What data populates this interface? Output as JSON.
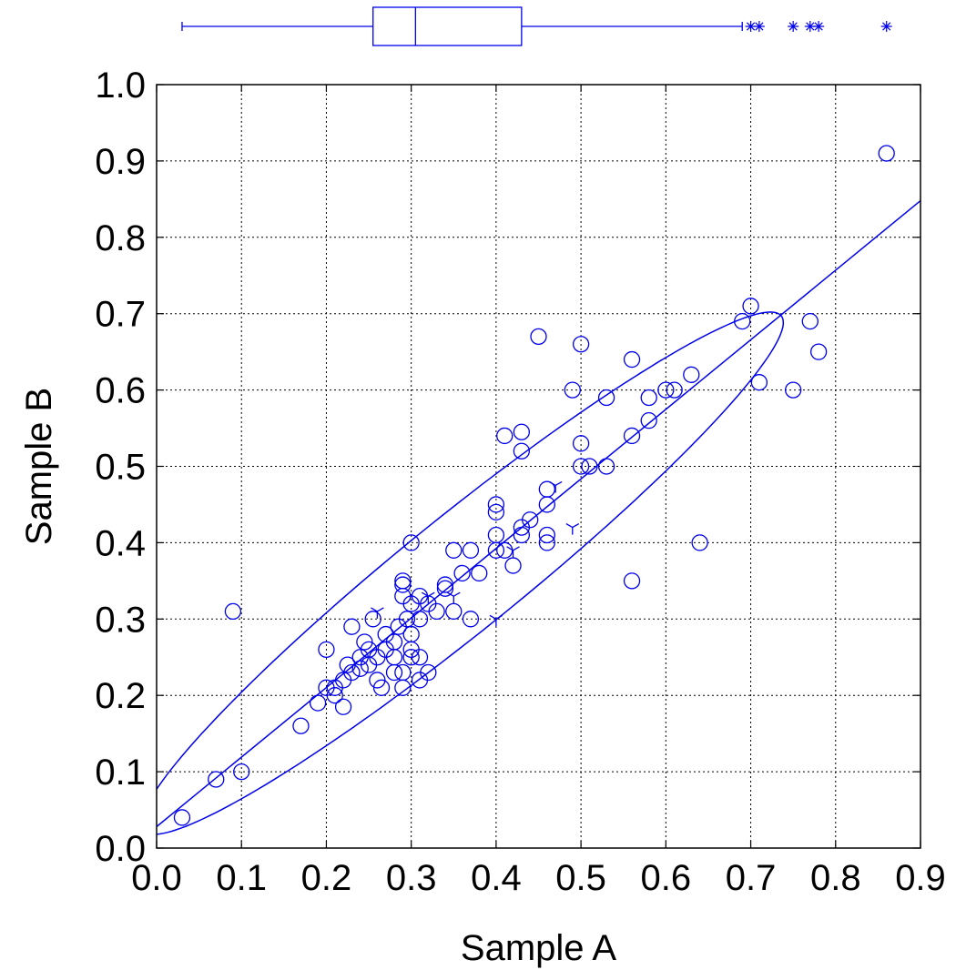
{
  "chart_data": {
    "type": "scatter",
    "xlabel": "Sample A",
    "ylabel": "Sample B",
    "xlim": [
      0.0,
      0.9
    ],
    "ylim": [
      0.0,
      1.0
    ],
    "x_ticks": [
      "0.0",
      "0.1",
      "0.2",
      "0.3",
      "0.4",
      "0.5",
      "0.6",
      "0.7",
      "0.8",
      "0.9"
    ],
    "y_ticks": [
      "0.0",
      "0.1",
      "0.2",
      "0.3",
      "0.4",
      "0.5",
      "0.6",
      "0.7",
      "0.8",
      "0.9",
      "1.0"
    ],
    "grid": true,
    "color": "#0000ee",
    "regression_line": {
      "x": [
        0.0,
        0.9
      ],
      "y": [
        0.028,
        0.848
      ]
    },
    "confidence_ellipse": {
      "center": [
        0.36,
        0.36
      ],
      "semi_major_axis": 0.505,
      "semi_minor_axis": 0.072,
      "angle_deg": 42
    },
    "boxplot_sample_a": {
      "whisker_low": 0.03,
      "q1": 0.255,
      "median": 0.305,
      "q3": 0.43,
      "whisker_high": 0.69,
      "outliers": [
        0.7,
        0.71,
        0.75,
        0.77,
        0.78,
        0.86
      ]
    },
    "points": [
      [
        0.03,
        0.04
      ],
      [
        0.07,
        0.09
      ],
      [
        0.09,
        0.31
      ],
      [
        0.1,
        0.1
      ],
      [
        0.17,
        0.16
      ],
      [
        0.19,
        0.19
      ],
      [
        0.2,
        0.21
      ],
      [
        0.2,
        0.26
      ],
      [
        0.21,
        0.2
      ],
      [
        0.21,
        0.21
      ],
      [
        0.22,
        0.185
      ],
      [
        0.22,
        0.22
      ],
      [
        0.225,
        0.24
      ],
      [
        0.23,
        0.23
      ],
      [
        0.23,
        0.29
      ],
      [
        0.24,
        0.25
      ],
      [
        0.24,
        0.235
      ],
      [
        0.245,
        0.27
      ],
      [
        0.25,
        0.24
      ],
      [
        0.25,
        0.26
      ],
      [
        0.255,
        0.3
      ],
      [
        0.26,
        0.22
      ],
      [
        0.26,
        0.25
      ],
      [
        0.265,
        0.21
      ],
      [
        0.27,
        0.26
      ],
      [
        0.27,
        0.28
      ],
      [
        0.28,
        0.23
      ],
      [
        0.28,
        0.25
      ],
      [
        0.28,
        0.27
      ],
      [
        0.285,
        0.29
      ],
      [
        0.29,
        0.21
      ],
      [
        0.29,
        0.23
      ],
      [
        0.29,
        0.33
      ],
      [
        0.29,
        0.345
      ],
      [
        0.29,
        0.35
      ],
      [
        0.295,
        0.3
      ],
      [
        0.3,
        0.25
      ],
      [
        0.3,
        0.26
      ],
      [
        0.3,
        0.28
      ],
      [
        0.3,
        0.32
      ],
      [
        0.3,
        0.4
      ],
      [
        0.31,
        0.22
      ],
      [
        0.31,
        0.25
      ],
      [
        0.31,
        0.3
      ],
      [
        0.31,
        0.33
      ],
      [
        0.32,
        0.23
      ],
      [
        0.32,
        0.32
      ],
      [
        0.33,
        0.31
      ],
      [
        0.34,
        0.34
      ],
      [
        0.34,
        0.345
      ],
      [
        0.35,
        0.31
      ],
      [
        0.35,
        0.39
      ],
      [
        0.36,
        0.36
      ],
      [
        0.37,
        0.3
      ],
      [
        0.37,
        0.39
      ],
      [
        0.38,
        0.36
      ],
      [
        0.4,
        0.39
      ],
      [
        0.4,
        0.41
      ],
      [
        0.4,
        0.44
      ],
      [
        0.4,
        0.45
      ],
      [
        0.41,
        0.39
      ],
      [
        0.41,
        0.54
      ],
      [
        0.42,
        0.37
      ],
      [
        0.43,
        0.41
      ],
      [
        0.43,
        0.42
      ],
      [
        0.43,
        0.52
      ],
      [
        0.43,
        0.545
      ],
      [
        0.44,
        0.43
      ],
      [
        0.45,
        0.67
      ],
      [
        0.46,
        0.4
      ],
      [
        0.46,
        0.41
      ],
      [
        0.46,
        0.45
      ],
      [
        0.46,
        0.47
      ],
      [
        0.49,
        0.6
      ],
      [
        0.5,
        0.5
      ],
      [
        0.5,
        0.53
      ],
      [
        0.5,
        0.66
      ],
      [
        0.51,
        0.5
      ],
      [
        0.53,
        0.5
      ],
      [
        0.53,
        0.59
      ],
      [
        0.56,
        0.35
      ],
      [
        0.56,
        0.54
      ],
      [
        0.56,
        0.64
      ],
      [
        0.58,
        0.56
      ],
      [
        0.58,
        0.59
      ],
      [
        0.6,
        0.6
      ],
      [
        0.61,
        0.6
      ],
      [
        0.63,
        0.62
      ],
      [
        0.64,
        0.4
      ],
      [
        0.69,
        0.69
      ],
      [
        0.7,
        0.71
      ],
      [
        0.71,
        0.61
      ],
      [
        0.75,
        0.6
      ],
      [
        0.77,
        0.69
      ],
      [
        0.78,
        0.65
      ],
      [
        0.86,
        0.91
      ]
    ],
    "tri_points": [
      [
        0.26,
        0.31
      ],
      [
        0.32,
        0.33
      ],
      [
        0.35,
        0.33
      ],
      [
        0.4,
        0.3
      ],
      [
        0.42,
        0.39
      ],
      [
        0.47,
        0.475
      ],
      [
        0.49,
        0.42
      ]
    ]
  }
}
